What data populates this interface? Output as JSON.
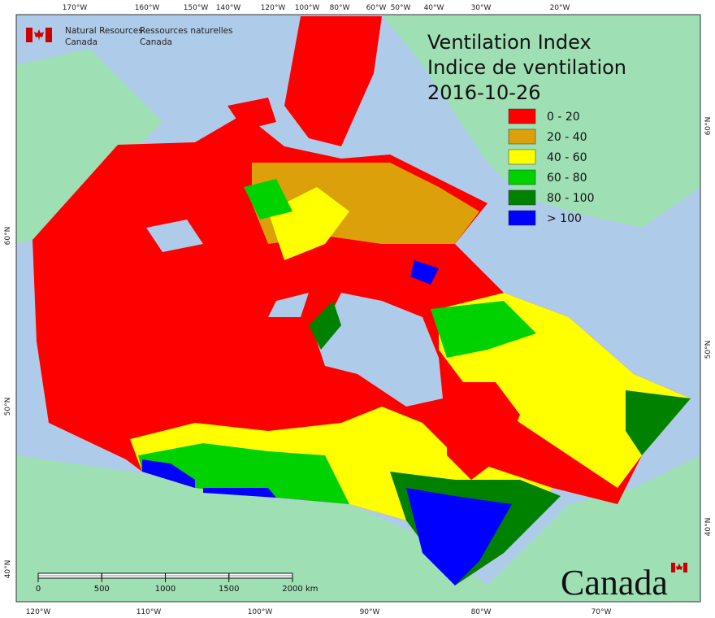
{
  "agency_en": [
    "Natural Resources",
    "Canada"
  ],
  "agency_fr": [
    "Ressources naturelles",
    "Canada"
  ],
  "title": [
    "Ventilation Index",
    "Indice de ventilation",
    "2016-10-26"
  ],
  "legend": [
    {
      "label": "0 - 20",
      "color": "#ff0000"
    },
    {
      "label": "20 - 40",
      "color": "#dca00a"
    },
    {
      "label": "40 - 60",
      "color": "#ffff00"
    },
    {
      "label": "60 - 80",
      "color": "#00d200"
    },
    {
      "label": "80 - 100",
      "color": "#008200"
    },
    {
      "label": "> 100",
      "color": "#0000ff"
    }
  ],
  "graticule": {
    "top": [
      "170°W",
      "160°W",
      "150°W",
      "140°W",
      "120°W",
      "100°W",
      "80°W",
      "60°W",
      "50°W",
      "40°W",
      "30°W",
      "20°W"
    ],
    "bottom": [
      "120°W",
      "110°W",
      "100°W",
      "90°W",
      "80°W",
      "70°W"
    ],
    "left": [
      "60°N",
      "50°N",
      "40°N"
    ],
    "right": [
      "60°N",
      "50°N",
      "40°N"
    ]
  },
  "scale": {
    "ticks": [
      0,
      500,
      1000,
      1500,
      2000
    ],
    "unit": "km"
  },
  "wordmark": "Canada"
}
